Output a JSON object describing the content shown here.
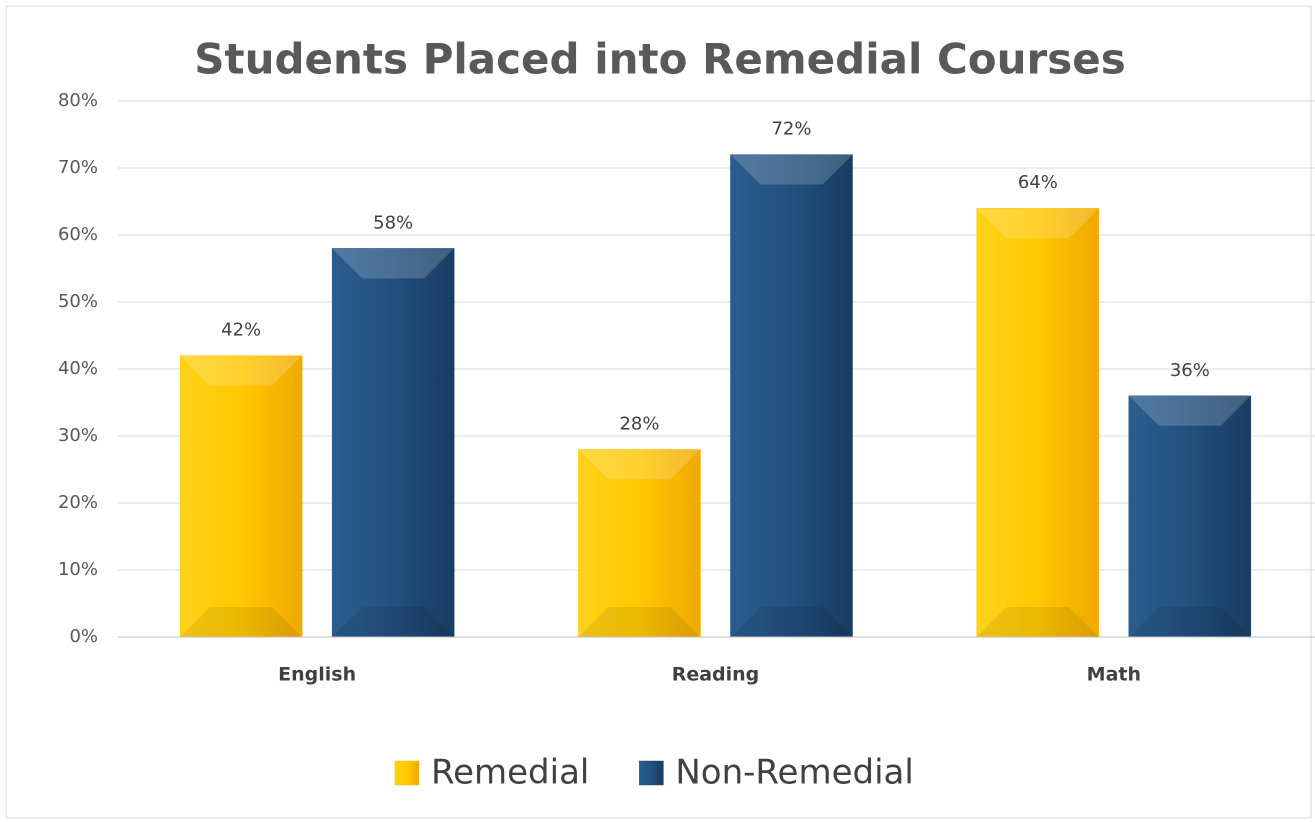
{
  "chart_data": {
    "type": "bar",
    "title": "Students Placed into Remedial Courses",
    "categories": [
      "English",
      "Reading",
      "Math"
    ],
    "series": [
      {
        "name": "Remedial",
        "color": "#ffc000",
        "values": [
          42,
          28,
          64
        ],
        "value_labels": [
          "42%",
          "28%",
          "64%"
        ]
      },
      {
        "name": "Non-Remedial",
        "color": "#1f4e79",
        "values": [
          58,
          72,
          36
        ],
        "value_labels": [
          "58%",
          "72%",
          "36%"
        ]
      }
    ],
    "ylim": [
      0,
      80
    ],
    "yticks": [
      {
        "value": 0,
        "label": "0%"
      },
      {
        "value": 10,
        "label": "10%"
      },
      {
        "value": 20,
        "label": "20%"
      },
      {
        "value": 30,
        "label": "30%"
      },
      {
        "value": 40,
        "label": "40%"
      },
      {
        "value": 50,
        "label": "50%"
      },
      {
        "value": 60,
        "label": "60%"
      },
      {
        "value": 70,
        "label": "70%"
      },
      {
        "value": 80,
        "label": "80%"
      }
    ],
    "grid": true,
    "legend": "bottom"
  }
}
